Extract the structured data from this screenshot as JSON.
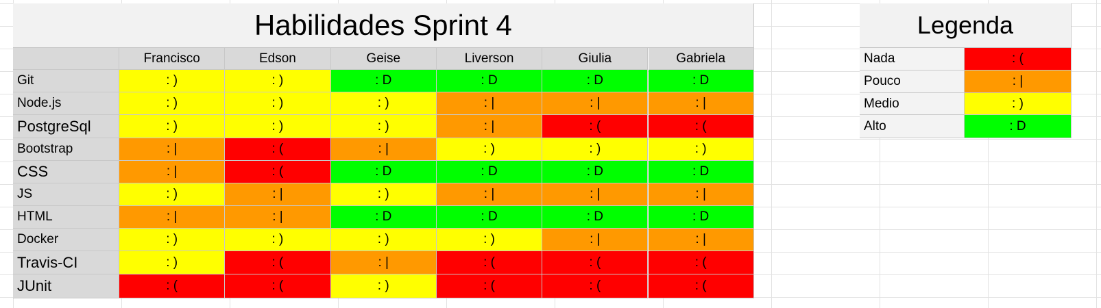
{
  "sheet": {
    "title": "Habilidades Sprint 4",
    "people": [
      "Francisco",
      "Edson",
      "Geise",
      "Liverson",
      "Giulia",
      "Gabriela"
    ],
    "rows": [
      {
        "skill": "Git",
        "cells": [
          {
            "text": ": )",
            "level": "medio"
          },
          {
            "text": ": )",
            "level": "medio"
          },
          {
            "text": ": D",
            "level": "alto"
          },
          {
            "text": ": D",
            "level": "alto"
          },
          {
            "text": ": D",
            "level": "alto"
          },
          {
            "text": ": D",
            "level": "alto"
          }
        ]
      },
      {
        "skill": "Node.js",
        "cells": [
          {
            "text": ": )",
            "level": "medio"
          },
          {
            "text": ": )",
            "level": "medio"
          },
          {
            "text": ": )",
            "level": "medio"
          },
          {
            "text": ": |",
            "level": "pouco"
          },
          {
            "text": ": |",
            "level": "pouco"
          },
          {
            "text": ": |",
            "level": "pouco"
          }
        ]
      },
      {
        "skill": "PostgreSql",
        "cells": [
          {
            "text": ": )",
            "level": "medio"
          },
          {
            "text": ": )",
            "level": "medio"
          },
          {
            "text": ": )",
            "level": "medio"
          },
          {
            "text": ": |",
            "level": "pouco"
          },
          {
            "text": ": (",
            "level": "nada"
          },
          {
            "text": ": (",
            "level": "nada"
          }
        ]
      },
      {
        "skill": "Bootstrap",
        "cells": [
          {
            "text": ": |",
            "level": "pouco"
          },
          {
            "text": ": (",
            "level": "nada"
          },
          {
            "text": ": |",
            "level": "pouco"
          },
          {
            "text": ": )",
            "level": "medio"
          },
          {
            "text": ": )",
            "level": "medio"
          },
          {
            "text": ": )",
            "level": "medio"
          }
        ]
      },
      {
        "skill": "CSS",
        "cells": [
          {
            "text": ": |",
            "level": "pouco"
          },
          {
            "text": ": (",
            "level": "nada"
          },
          {
            "text": ": D",
            "level": "alto"
          },
          {
            "text": ": D",
            "level": "alto"
          },
          {
            "text": ": D",
            "level": "alto"
          },
          {
            "text": ": D",
            "level": "alto"
          }
        ]
      },
      {
        "skill": "JS",
        "cells": [
          {
            "text": ": )",
            "level": "medio"
          },
          {
            "text": ": |",
            "level": "pouco"
          },
          {
            "text": ": )",
            "level": "medio"
          },
          {
            "text": ": |",
            "level": "pouco"
          },
          {
            "text": ": |",
            "level": "pouco"
          },
          {
            "text": ": |",
            "level": "pouco"
          }
        ]
      },
      {
        "skill": "HTML",
        "cells": [
          {
            "text": ": |",
            "level": "pouco"
          },
          {
            "text": ": |",
            "level": "pouco"
          },
          {
            "text": ": D",
            "level": "alto"
          },
          {
            "text": ": D",
            "level": "alto"
          },
          {
            "text": ": D",
            "level": "alto"
          },
          {
            "text": ": D",
            "level": "alto"
          }
        ]
      },
      {
        "skill": "Docker",
        "cells": [
          {
            "text": ": )",
            "level": "medio"
          },
          {
            "text": ": )",
            "level": "medio"
          },
          {
            "text": ": )",
            "level": "medio"
          },
          {
            "text": ": )",
            "level": "medio"
          },
          {
            "text": ": |",
            "level": "pouco"
          },
          {
            "text": ": |",
            "level": "pouco"
          }
        ]
      },
      {
        "skill": "Travis-CI",
        "cells": [
          {
            "text": ": )",
            "level": "medio"
          },
          {
            "text": ": (",
            "level": "nada"
          },
          {
            "text": ": |",
            "level": "pouco"
          },
          {
            "text": ": (",
            "level": "nada"
          },
          {
            "text": ": (",
            "level": "nada"
          },
          {
            "text": ": (",
            "level": "nada"
          }
        ]
      },
      {
        "skill": "JUnit",
        "cells": [
          {
            "text": ": (",
            "level": "nada"
          },
          {
            "text": ": (",
            "level": "nada"
          },
          {
            "text": ": )",
            "level": "medio"
          },
          {
            "text": ": (",
            "level": "nada"
          },
          {
            "text": ": (",
            "level": "nada"
          },
          {
            "text": ": (",
            "level": "nada"
          }
        ]
      }
    ]
  },
  "legend": {
    "title": "Legenda",
    "items": [
      {
        "label": "Nada",
        "symbol": ": (",
        "level": "nada"
      },
      {
        "label": "Pouco",
        "symbol": ": |",
        "level": "pouco"
      },
      {
        "label": "Medio",
        "symbol": ": )",
        "level": "medio"
      },
      {
        "label": "Alto",
        "symbol": ": D",
        "level": "alto"
      }
    ]
  },
  "colors": {
    "nada": "#ff0000",
    "pouco": "#ff9900",
    "medio": "#ffff00",
    "alto": "#00ff00",
    "header": "#d9d9d9",
    "title": "#f2f2f2"
  }
}
